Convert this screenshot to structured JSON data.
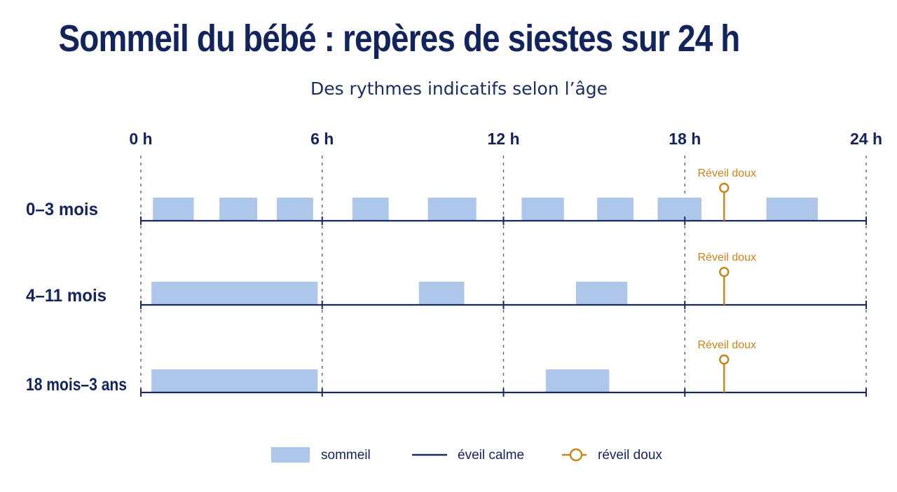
{
  "title": "Sommeil du bébé : repères de siestes sur 24 h",
  "subtitle": "Des rythmes indicatifs selon l’âge",
  "colors": {
    "title": "#13245a",
    "sleep": "#adc6ea",
    "baseline": "#1a2a5c",
    "wake": "#c4861c",
    "gridline": "#5a6480"
  },
  "chart_data": {
    "type": "timeline",
    "x_unit": "h",
    "xlim": [
      0,
      24
    ],
    "x_ticks": [
      {
        "value": 0,
        "label": "0 h"
      },
      {
        "value": 6,
        "label": "6 h"
      },
      {
        "value": 12,
        "label": "12 h"
      },
      {
        "value": 18,
        "label": "18 h"
      },
      {
        "value": 24,
        "label": "24 h"
      }
    ],
    "rows": [
      {
        "label": "0–3 mois",
        "sleep_periods": [
          [
            0.4,
            1.75
          ],
          [
            2.6,
            3.85
          ],
          [
            4.5,
            5.7
          ],
          [
            7.0,
            8.2
          ],
          [
            9.5,
            11.1
          ],
          [
            12.6,
            14.0
          ],
          [
            15.1,
            16.3
          ],
          [
            17.1,
            18.55
          ],
          [
            20.7,
            22.4
          ]
        ],
        "wake_marker": {
          "hour": 19.3,
          "label": "Réveil doux"
        }
      },
      {
        "label": "4–11 mois",
        "sleep_periods": [
          [
            0.35,
            5.85
          ],
          [
            9.2,
            10.7
          ],
          [
            14.4,
            16.1
          ]
        ],
        "wake_marker": {
          "hour": 19.3,
          "label": "Réveil doux"
        }
      },
      {
        "label": "18 mois–3 ans",
        "sleep_periods": [
          [
            0.35,
            5.85
          ],
          [
            13.4,
            15.5
          ]
        ],
        "wake_marker": {
          "hour": 19.3,
          "label": "Réveil doux"
        }
      }
    ],
    "legend": [
      {
        "key": "sleep",
        "label": "sommeil"
      },
      {
        "key": "calm",
        "label": "éveil calme"
      },
      {
        "key": "wake",
        "label": "réveil doux"
      }
    ],
    "legend_position": "bottom-center"
  }
}
